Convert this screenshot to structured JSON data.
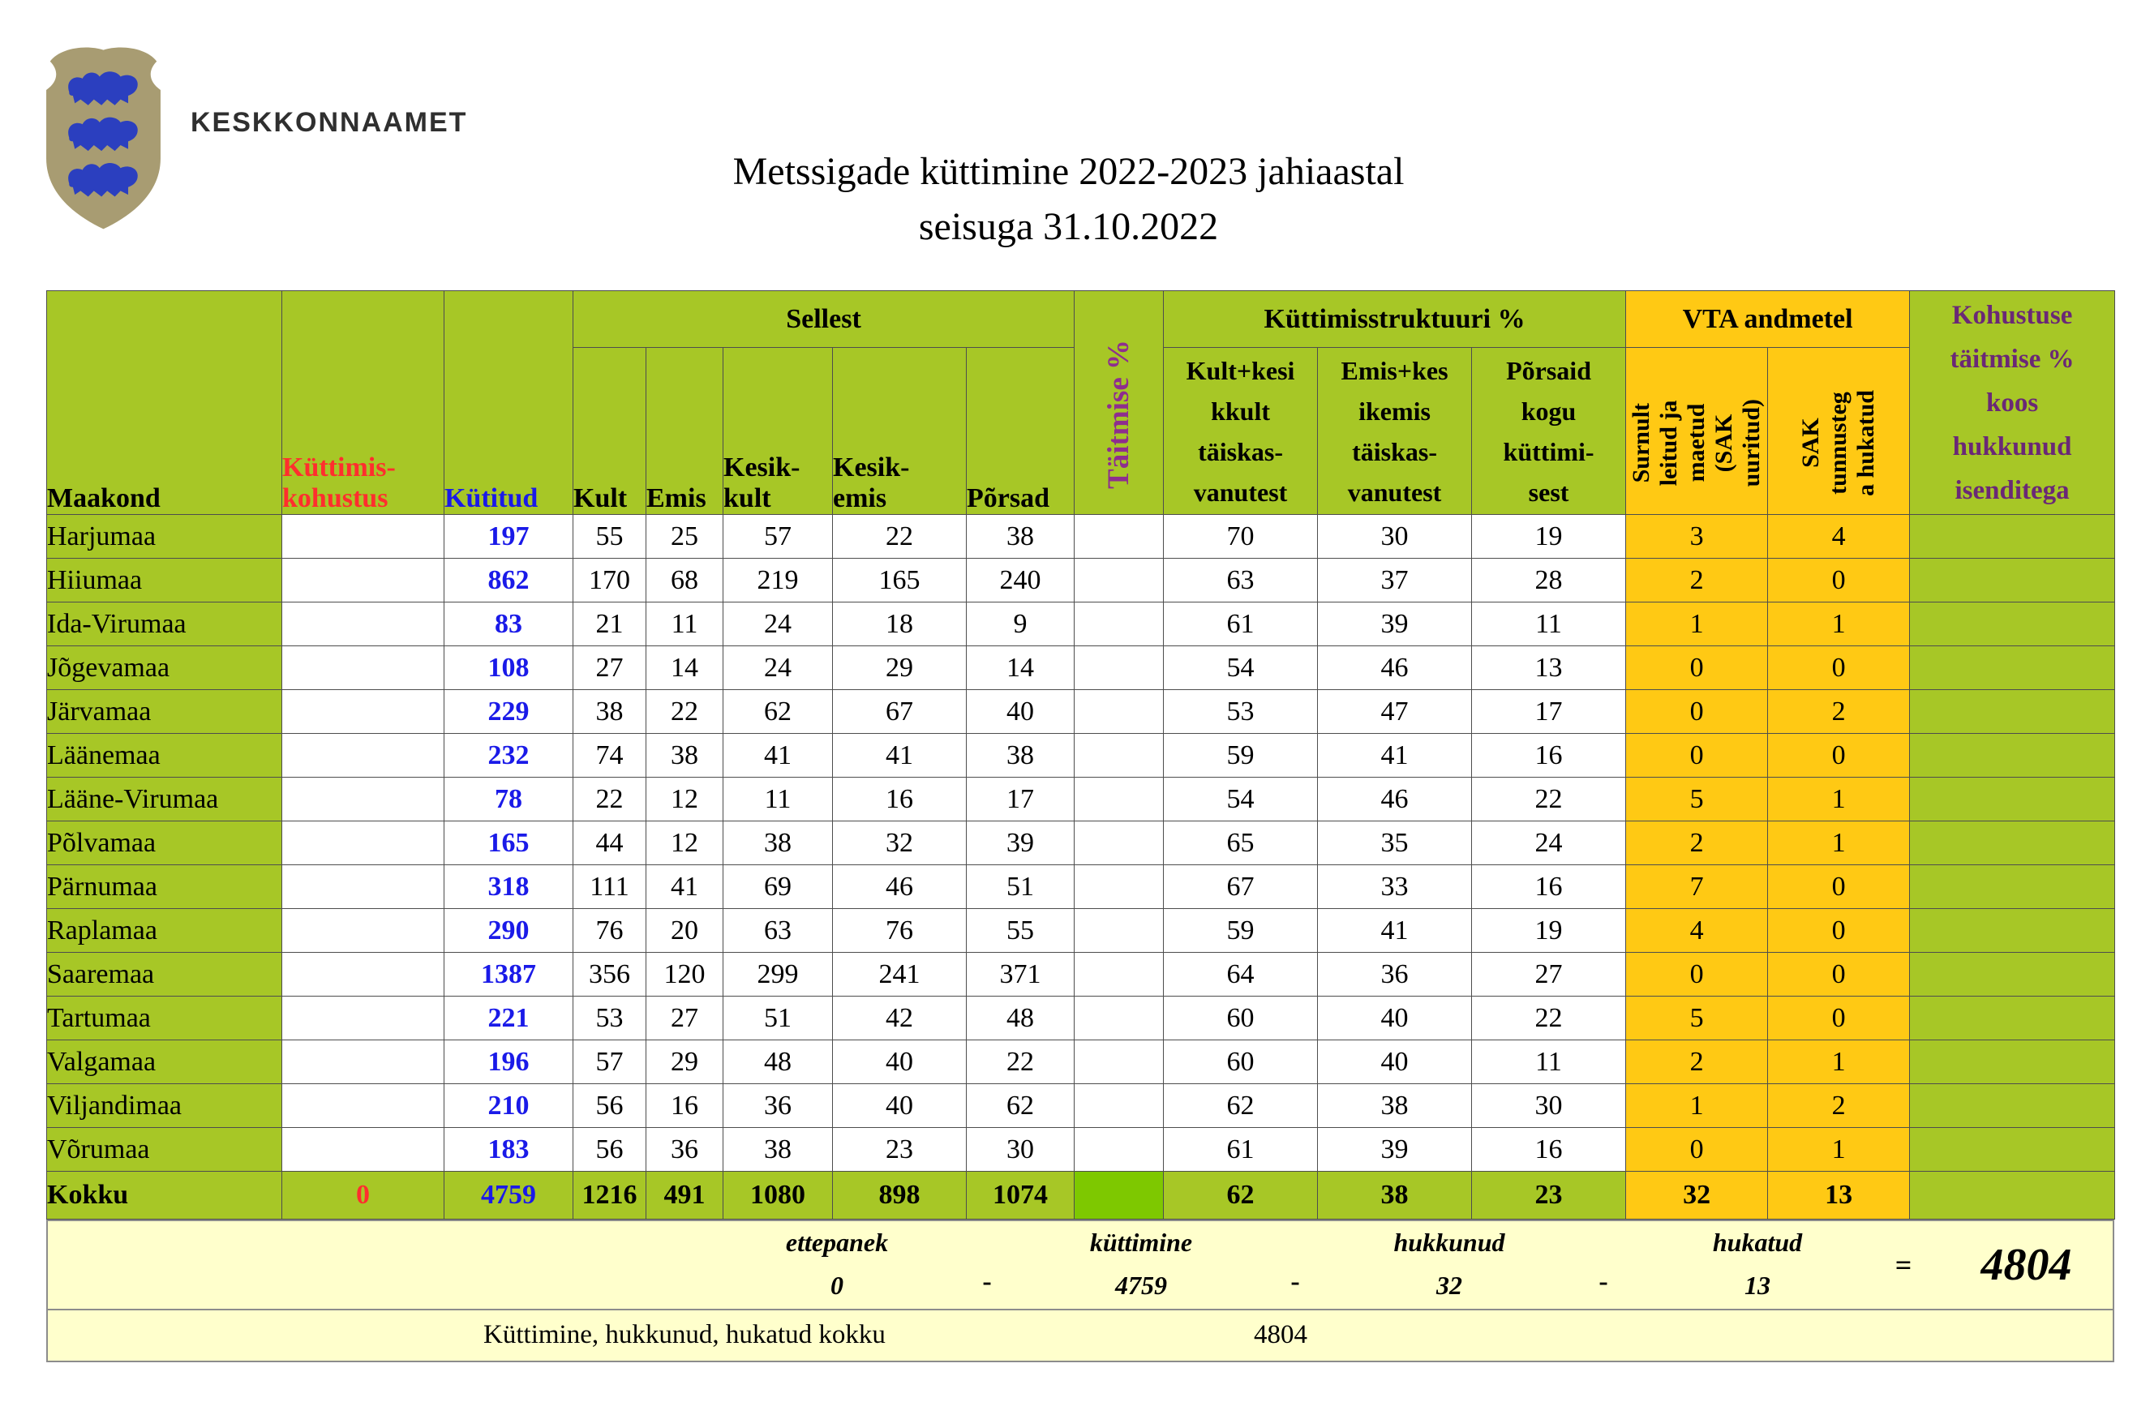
{
  "logo": {
    "org_name": "KESKKONNAAMET",
    "shield_color": "#A89C72",
    "lion_color": "#2B3FBF"
  },
  "title": {
    "line1": "Metssigade küttimine 2022-2023 jahiaastal",
    "line2": "seisuga 31.10.2022"
  },
  "colors": {
    "green": "#A7C726",
    "bright-green": "#7EC800",
    "gold": "#FFC914",
    "pale-yellow": "#FFFFCC",
    "red": "#FF2E2E",
    "blue": "#1A1AE8",
    "purple": "#8E2E8E",
    "dark-purple": "#6A2876"
  },
  "table": {
    "headers": {
      "maakond": "Maakond",
      "kohustus": "Küttimis-\nkohustus",
      "kytitud": "Kütitud",
      "sellest": "Sellest",
      "kult": "Kult",
      "emis": "Emis",
      "kesik_kult": "Kesik-\nkult",
      "kesik_emis": "Kesik-\nemis",
      "porsad": "Põrsad",
      "taitmise": "Täitmise %",
      "struktuur": "Küttimisstruktuuri %",
      "struktuur_sub1": "Kult+kesi\nkkult\ntäiskas-\nvanutest",
      "struktuur_sub2": "Emis+kes\nikemis\ntäiskas-\nvanutest",
      "struktuur_sub3": "Põrsaid\nkogu\nküttimi-\nsest",
      "vta": "VTA andmetel",
      "vta_sub1": "Surnult\nleitud ja\nmaetud\n(SAK\nuuritud)",
      "vta_sub2": "SAK\ntunnusteg\na hukatud",
      "kohustuse": "Kohustuse\ntäitmise %\nkoos\nhukkunud\nisenditega"
    },
    "rows": [
      [
        "Harjumaa",
        "",
        197,
        55,
        25,
        57,
        22,
        38,
        "",
        70,
        30,
        19,
        3,
        4,
        ""
      ],
      [
        "Hiiumaa",
        "",
        862,
        170,
        68,
        219,
        165,
        240,
        "",
        63,
        37,
        28,
        2,
        0,
        ""
      ],
      [
        "Ida-Virumaa",
        "",
        83,
        21,
        11,
        24,
        18,
        9,
        "",
        61,
        39,
        11,
        1,
        1,
        ""
      ],
      [
        "Jõgevamaa",
        "",
        108,
        27,
        14,
        24,
        29,
        14,
        "",
        54,
        46,
        13,
        0,
        0,
        ""
      ],
      [
        "Järvamaa",
        "",
        229,
        38,
        22,
        62,
        67,
        40,
        "",
        53,
        47,
        17,
        0,
        2,
        ""
      ],
      [
        "Läänemaa",
        "",
        232,
        74,
        38,
        41,
        41,
        38,
        "",
        59,
        41,
        16,
        0,
        0,
        ""
      ],
      [
        "Lääne-Virumaa",
        "",
        78,
        22,
        12,
        11,
        16,
        17,
        "",
        54,
        46,
        22,
        5,
        1,
        ""
      ],
      [
        "Põlvamaa",
        "",
        165,
        44,
        12,
        38,
        32,
        39,
        "",
        65,
        35,
        24,
        2,
        1,
        ""
      ],
      [
        "Pärnumaa",
        "",
        318,
        111,
        41,
        69,
        46,
        51,
        "",
        67,
        33,
        16,
        7,
        0,
        ""
      ],
      [
        "Raplamaa",
        "",
        290,
        76,
        20,
        63,
        76,
        55,
        "",
        59,
        41,
        19,
        4,
        0,
        ""
      ],
      [
        "Saaremaa",
        "",
        1387,
        356,
        120,
        299,
        241,
        371,
        "",
        64,
        36,
        27,
        0,
        0,
        ""
      ],
      [
        "Tartumaa",
        "",
        221,
        53,
        27,
        51,
        42,
        48,
        "",
        60,
        40,
        22,
        5,
        0,
        ""
      ],
      [
        "Valgamaa",
        "",
        196,
        57,
        29,
        48,
        40,
        22,
        "",
        60,
        40,
        11,
        2,
        1,
        ""
      ],
      [
        "Viljandimaa",
        "",
        210,
        56,
        16,
        36,
        40,
        62,
        "",
        62,
        38,
        30,
        1,
        2,
        ""
      ],
      [
        "Võrumaa",
        "",
        183,
        56,
        36,
        38,
        23,
        30,
        "",
        61,
        39,
        16,
        0,
        1,
        ""
      ]
    ],
    "total": [
      "Kokku",
      0,
      4759,
      1216,
      491,
      1080,
      898,
      1074,
      "",
      62,
      38,
      23,
      32,
      13,
      ""
    ]
  },
  "summary": {
    "row1": {
      "groups": [
        {
          "label": "ettepanek",
          "value": "0"
        },
        {
          "label": "küttimine",
          "value": "4759"
        },
        {
          "label": "hukkunud",
          "value": "32"
        },
        {
          "label": "hukatud",
          "value": "13"
        }
      ],
      "sep": "-",
      "equals": "=",
      "total": "4804"
    },
    "row2": {
      "label": "Küttimine, hukkunud, hukatud kokku",
      "value": "4804"
    }
  }
}
